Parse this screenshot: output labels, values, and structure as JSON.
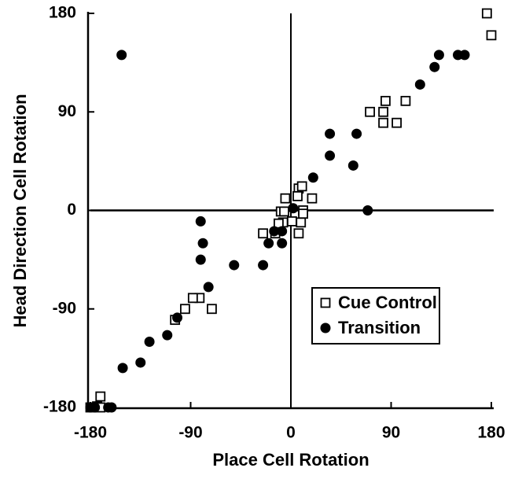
{
  "chart_data": {
    "type": "scatter",
    "xlabel": "Place Cell Rotation",
    "ylabel": "Head Direction Cell Rotation",
    "xlim": [
      -180,
      180
    ],
    "ylim": [
      -180,
      180
    ],
    "xticks": [
      -180,
      -90,
      0,
      90,
      180
    ],
    "yticks": [
      -180,
      -90,
      0,
      90,
      180
    ],
    "zero_lines": {
      "x": 0,
      "y": 0
    },
    "legend": "lower right",
    "series": [
      {
        "name": "Cue Control",
        "marker": "open-square",
        "color": "#000000",
        "x": [
          176,
          180,
          71,
          85,
          83,
          83,
          95,
          103,
          7,
          10,
          6,
          -5,
          19,
          -9,
          11,
          1,
          -7,
          7,
          -25,
          -14,
          -11,
          9,
          11,
          -6,
          -82,
          -88,
          -95,
          -71,
          -104,
          -171,
          -174,
          -180,
          -171
        ],
        "y": [
          180,
          160,
          90,
          100,
          90,
          80,
          80,
          100,
          20,
          22,
          13,
          11,
          11,
          -1,
          0,
          -10,
          -11,
          -21,
          -21,
          -21,
          -12,
          -11,
          -3,
          -1,
          -80,
          -80,
          -90,
          -90,
          -100,
          -170,
          -179,
          -180,
          -180
        ]
      },
      {
        "name": "Transition",
        "marker": "filled-circle",
        "color": "#000000",
        "x": [
          -152,
          133,
          150,
          156,
          129,
          116,
          35,
          59,
          35,
          56,
          20,
          69,
          2,
          -8,
          -8,
          -20,
          -15,
          -25,
          -81,
          -79,
          -81,
          -74,
          -51,
          -102,
          -111,
          -127,
          -135,
          -151,
          -161,
          -180,
          -176,
          -164
        ],
        "y": [
          142,
          142,
          142,
          142,
          131,
          115,
          70,
          70,
          50,
          41,
          30,
          0,
          2,
          -19,
          -30,
          -30,
          -19,
          -50,
          -10,
          -30,
          -45,
          -70,
          -50,
          -98,
          -114,
          -120,
          -139,
          -144,
          -180,
          -180,
          -180,
          -180
        ]
      }
    ]
  }
}
